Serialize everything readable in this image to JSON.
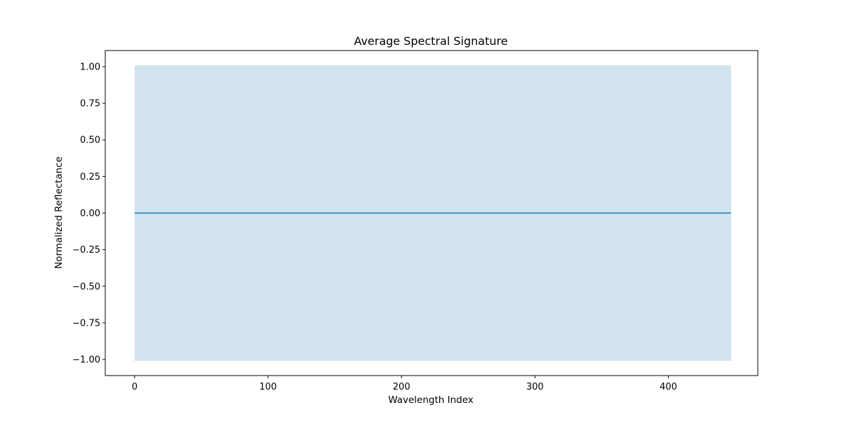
{
  "chart_data": {
    "type": "line",
    "title": "Average Spectral Signature",
    "xlabel": "Wavelength Index",
    "ylabel": "Normalized Reflectance",
    "xlim": [
      -22,
      467
    ],
    "ylim": [
      -1.11,
      1.11
    ],
    "grid": false,
    "x_ticks": [
      0,
      100,
      200,
      300,
      400
    ],
    "x_tick_labels": [
      "0",
      "100",
      "200",
      "300",
      "400"
    ],
    "y_ticks": [
      1.0,
      0.75,
      0.5,
      0.25,
      0.0,
      -0.25,
      -0.5,
      -0.75,
      -1.0
    ],
    "y_tick_labels": [
      "1.00",
      "0.75",
      "0.50",
      "0.25",
      "0.00",
      "−0.25",
      "−0.50",
      "−0.75",
      "−1.00"
    ],
    "series": [
      {
        "x": [
          0,
          447
        ],
        "values": [
          0,
          0
        ],
        "color": "#1f77b4"
      }
    ],
    "band": {
      "x": [
        0,
        447
      ],
      "lower": [
        -1.01,
        -1.01
      ],
      "upper": [
        1.01,
        1.01
      ],
      "color": "#1f77b4",
      "opacity": 0.2
    }
  }
}
